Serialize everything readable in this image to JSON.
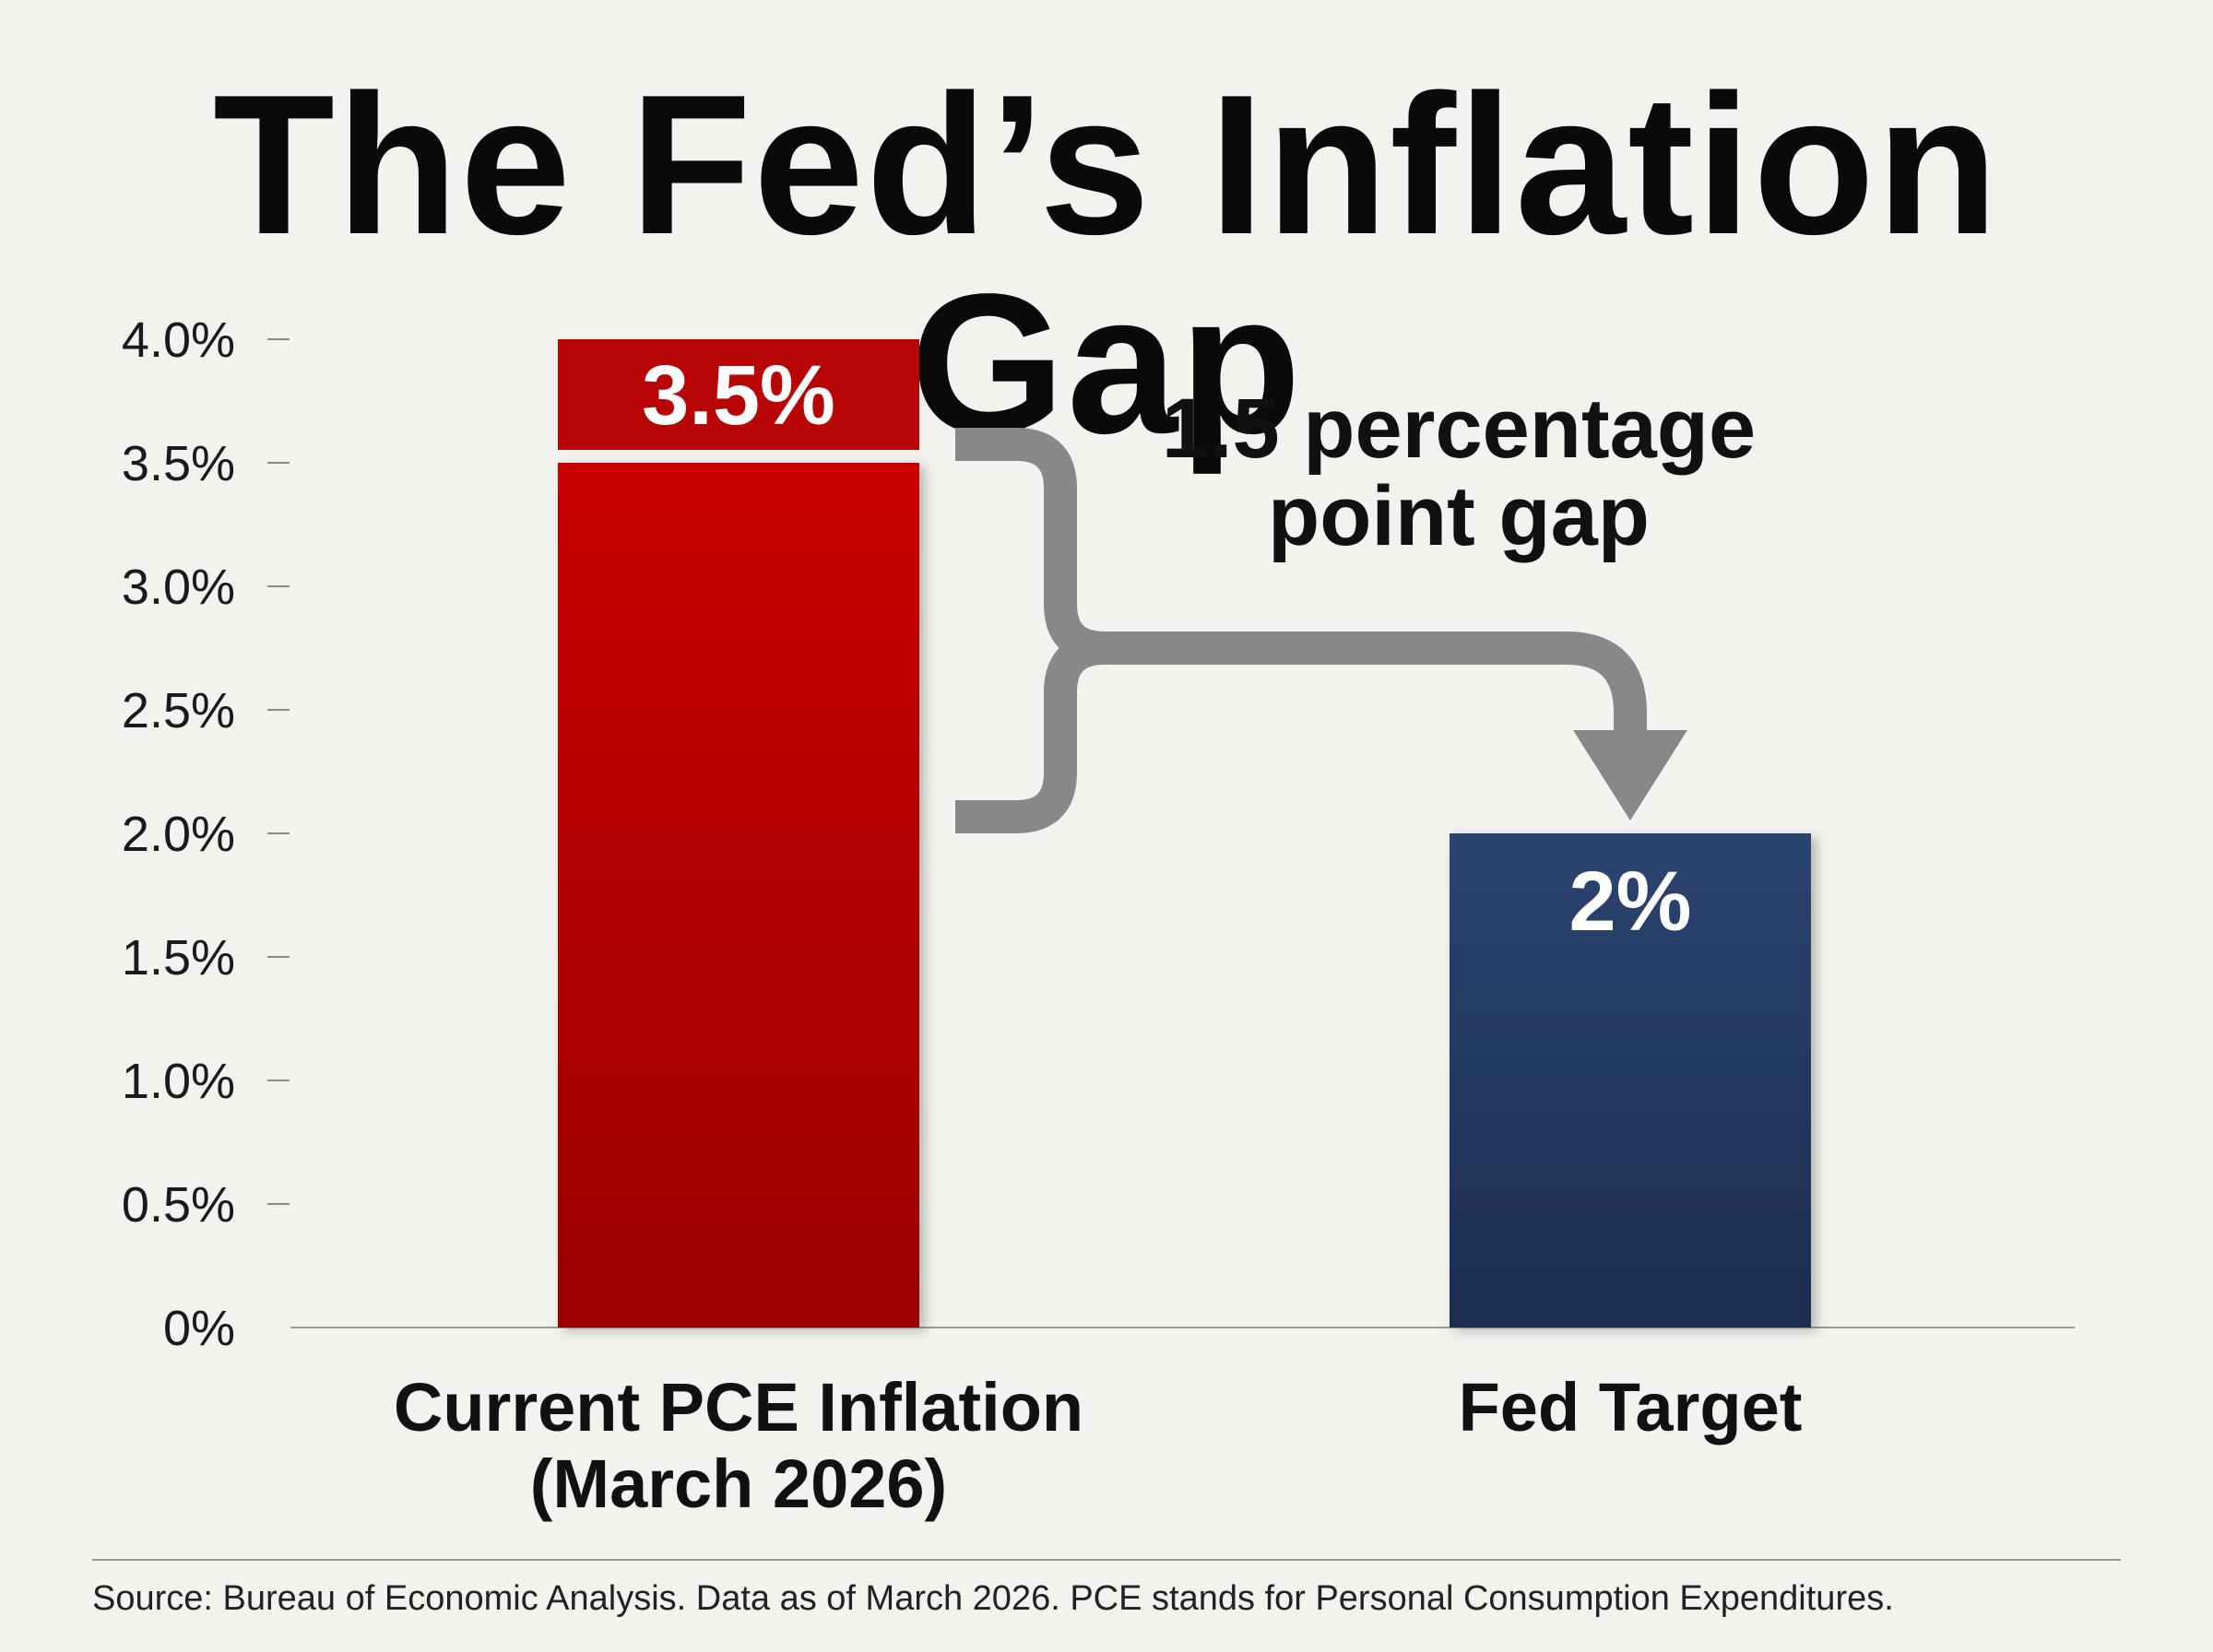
{
  "chart_data": {
    "type": "bar",
    "title": "The Fed’s Inflation Gap",
    "categories": [
      [
        "Current PCE Inflation",
        "(March 2026)"
      ],
      [
        "Fed Target"
      ]
    ],
    "values": [
      3.5,
      2.0
    ],
    "value_labels": [
      "3.5%",
      "2%"
    ],
    "colors": [
      "#b80606",
      "#263d66"
    ],
    "ylim": [
      0,
      4.0
    ],
    "ytick_values": [
      0,
      0.5,
      1.0,
      1.5,
      2.0,
      2.5,
      3.0,
      3.5,
      4.0
    ],
    "ytick_labels": [
      "0%",
      "0.5%",
      "1.0%",
      "1.5%",
      "2.0%",
      "2.5%",
      "3.0%",
      "3.5%",
      "4.0%"
    ],
    "gridlines": false,
    "annotation": {
      "text_lines": [
        "1.5 percentage",
        "point gap"
      ],
      "from_value": 3.5,
      "to_value": 2.0,
      "color": "#888888"
    }
  },
  "source": "Source: Bureau of Economic Analysis. Data as of March 2026. PCE stands for Personal Consumption Expenditures."
}
